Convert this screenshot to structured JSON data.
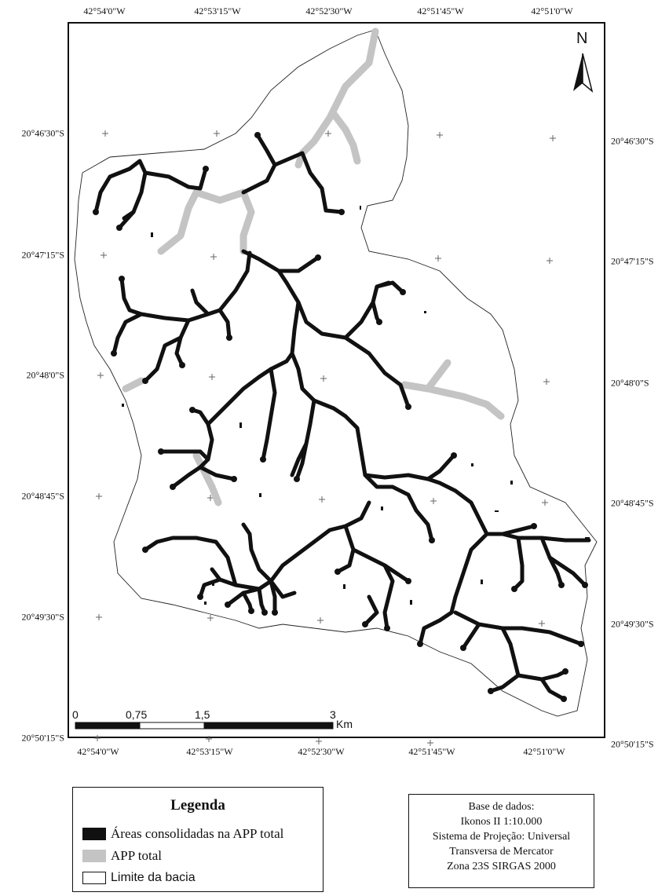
{
  "map": {
    "north_arrow_label": "N",
    "top_coords": [
      "42°54'0\"W",
      "42°53'15\"W",
      "42°52'30\"W",
      "42°51'45\"W",
      "42°51'0\"W"
    ],
    "bottom_coords": [
      "42°54'0\"W",
      "42°53'15\"W",
      "42°52'30\"W",
      "42°51'45\"W",
      "42°51'0\"W"
    ],
    "left_coords": [
      "20°46'30\"S",
      "20°47'15\"S",
      "20°48'0\"S",
      "20°48'45\"S",
      "20°49'30\"S",
      "20°50'15\"S"
    ],
    "right_coords": [
      "20°46'30\"S",
      "20°47'15\"S",
      "20°48'0\"S",
      "20°48'45\"S",
      "20°49'30\"S",
      "20°50'15\"S"
    ],
    "colors": {
      "consolidated": "#111111",
      "app_total": "#c4c4c4",
      "basin_boundary": "#ffffff"
    }
  },
  "scale_bar": {
    "labels": [
      "0",
      "0,75",
      "1,5",
      "3"
    ],
    "unit": "Km"
  },
  "legend": {
    "title": "Legenda",
    "items": [
      {
        "label": "Áreas consolidadas na APP total",
        "color": "#111111"
      },
      {
        "label": "APP total",
        "color": "#c4c4c4"
      },
      {
        "label": "Limite da bacia",
        "color": "#ffffff"
      }
    ]
  },
  "source": {
    "lines": [
      "Base de dados:",
      "Ikonos II 1:10.000",
      "Sistema de Projeção: Universal",
      "Transversa de Mercator",
      "Zona 23S SIRGAS 2000"
    ]
  }
}
